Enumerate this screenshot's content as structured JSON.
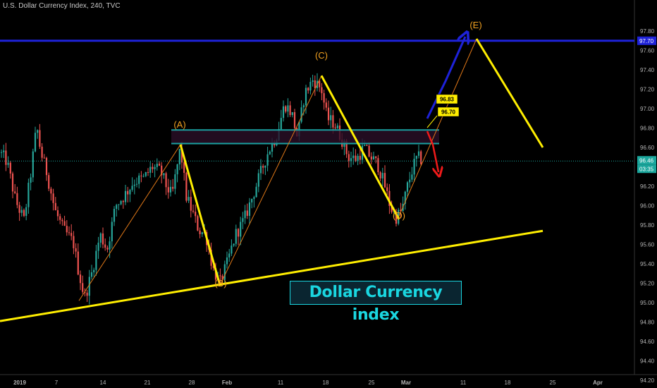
{
  "header": {
    "title": "U.S. Dollar Currency Index, 240, TVC"
  },
  "banner": {
    "text": "Dollar Currency index"
  },
  "chart_data": {
    "type": "candlestick",
    "ylim": [
      94.12,
      98.12
    ],
    "y_ticks": [
      "97.80",
      "97.60",
      "97.40",
      "97.20",
      "97.00",
      "96.80",
      "96.60",
      "96.40",
      "96.20",
      "96.00",
      "95.80",
      "95.60",
      "95.40",
      "95.20",
      "95.00",
      "94.80",
      "94.60",
      "94.40",
      "94.20"
    ],
    "x_ticks": [
      "2019",
      "7",
      "14",
      "21",
      "28",
      "Feb",
      "11",
      "18",
      "25",
      "Mar",
      "11",
      "18",
      "25",
      "Apr"
    ],
    "price_badges": [
      {
        "value": "97.70",
        "bg": "#1e22d8",
        "fg": "#ffffff"
      },
      {
        "value": "96.46",
        "bg": "#1aa69c",
        "fg": "#ffffff"
      },
      {
        "value": "03:35",
        "bg": "#1aa69c",
        "fg": "#ffffff"
      }
    ],
    "current_price": 96.46,
    "resistance_line": 97.7,
    "zone": {
      "upper": 96.78,
      "lower": 96.64
    },
    "callouts": [
      {
        "text": "96.83",
        "value": 96.83
      },
      {
        "text": "96.70",
        "value": 96.7
      }
    ],
    "wave_labels": [
      "(A)",
      "(B)",
      "(C)",
      "(D)",
      "(E)"
    ],
    "wave_points": [
      96.63,
      95.18,
      97.34,
      95.86,
      97.72
    ],
    "wave_end_value": 96.6,
    "trendline": {
      "start": 94.81,
      "end": 95.74
    },
    "colors": {
      "up": "#26a69a",
      "down": "#ef5350",
      "wave": "#ffee00",
      "resistance": "#1e22d8",
      "zone": "#1aa0a0",
      "projection_up": "#1e22d8",
      "projection_down": "#ef1a1a"
    }
  }
}
